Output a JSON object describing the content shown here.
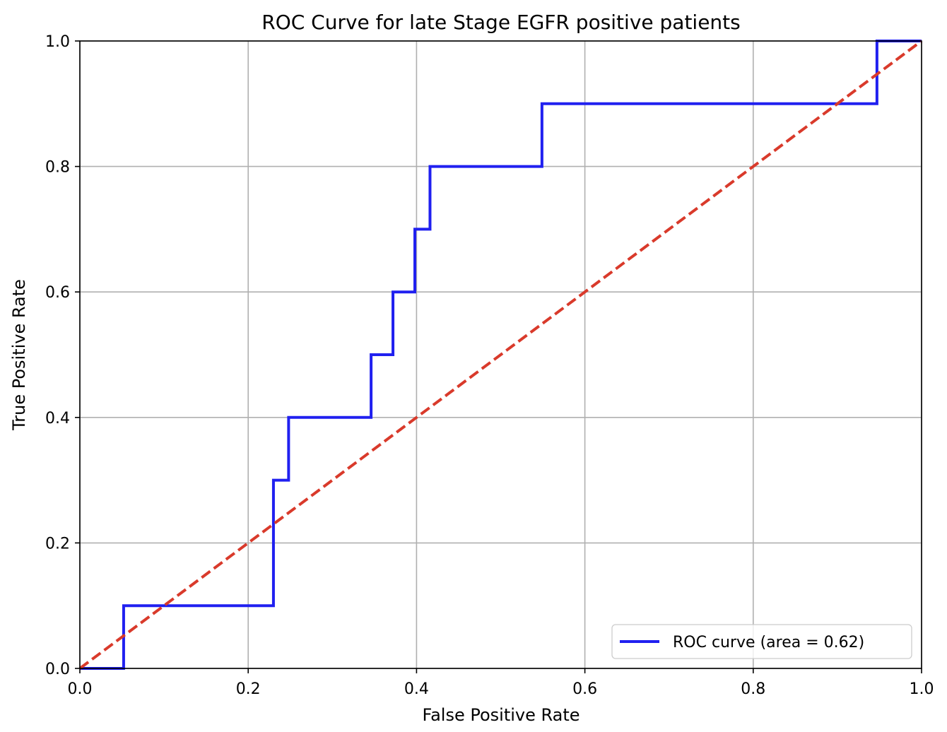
{
  "chart_data": {
    "type": "line",
    "title": "ROC Curve for late Stage EGFR positive patients",
    "xlabel": "False Positive Rate",
    "ylabel": "True Positive Rate",
    "xlim": [
      0.0,
      1.0
    ],
    "ylim": [
      0.0,
      1.0
    ],
    "xticks": [
      "0.0",
      "0.2",
      "0.4",
      "0.6",
      "0.8",
      "1.0"
    ],
    "yticks": [
      "0.0",
      "0.2",
      "0.4",
      "0.6",
      "0.8",
      "1.0"
    ],
    "grid": true,
    "legend_position": "lower-right",
    "series": [
      {
        "name": "ROC curve (area = 0.62)",
        "color": "#2020f0",
        "style": "solid",
        "points": [
          [
            0.0,
            0.0
          ],
          [
            0.052,
            0.0
          ],
          [
            0.052,
            0.1
          ],
          [
            0.23,
            0.1
          ],
          [
            0.23,
            0.3
          ],
          [
            0.248,
            0.3
          ],
          [
            0.248,
            0.4
          ],
          [
            0.346,
            0.4
          ],
          [
            0.346,
            0.5
          ],
          [
            0.372,
            0.5
          ],
          [
            0.372,
            0.6
          ],
          [
            0.398,
            0.6
          ],
          [
            0.398,
            0.7
          ],
          [
            0.416,
            0.7
          ],
          [
            0.416,
            0.8
          ],
          [
            0.549,
            0.8
          ],
          [
            0.549,
            0.9
          ],
          [
            0.947,
            0.9
          ],
          [
            0.947,
            1.0
          ],
          [
            1.0,
            1.0
          ]
        ]
      },
      {
        "color": "#d93a2b",
        "style": "dashed",
        "points": [
          [
            0.0,
            0.0
          ],
          [
            1.0,
            1.0
          ]
        ]
      }
    ]
  }
}
